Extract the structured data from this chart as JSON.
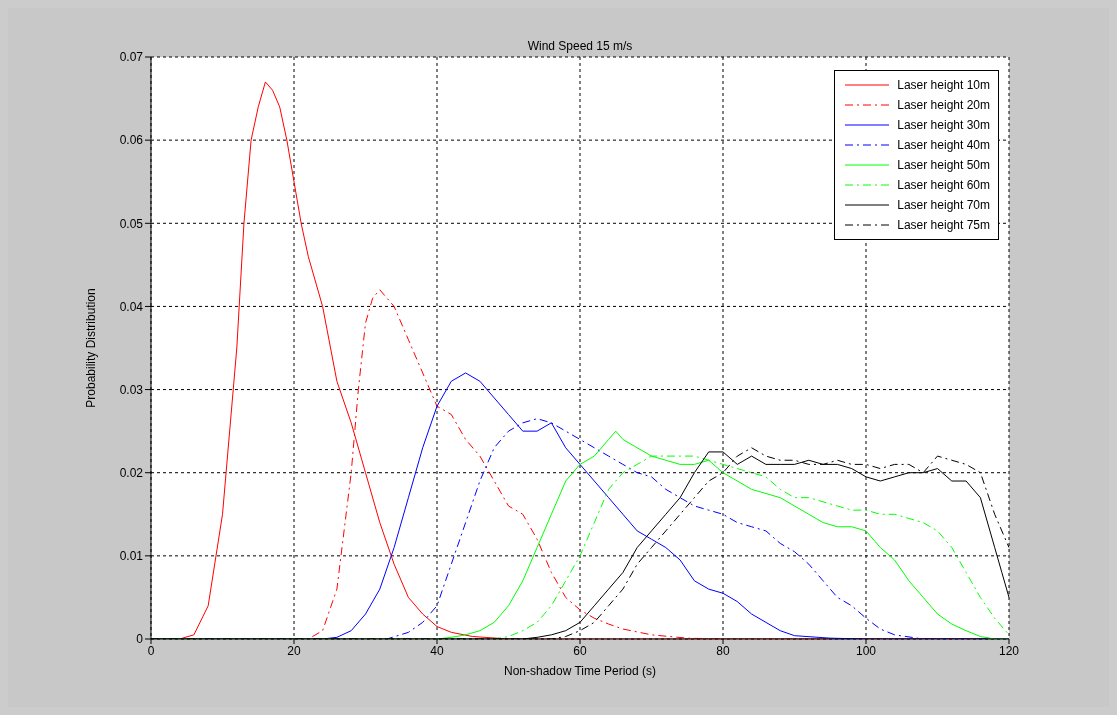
{
  "chart_data": {
    "type": "line",
    "title": "Wind Speed 15 m/s",
    "xlabel": "Non-shadow Time Period (s)",
    "ylabel": "Probability Distribution",
    "xlim": [
      0,
      120
    ],
    "xticks": [
      0,
      20,
      40,
      60,
      80,
      100,
      120
    ],
    "ylim": [
      0,
      0.07
    ],
    "yticks": [
      0,
      0.01,
      0.02,
      0.03,
      0.04,
      0.05,
      0.06,
      0.07
    ],
    "grid": true,
    "legend": "top right",
    "marker": "none",
    "series": [
      {
        "name": "Laser height 10m",
        "color": "#ff0000",
        "line_style": "solid",
        "x": [
          0,
          4,
          6,
          8,
          10,
          12,
          13,
          14,
          15,
          16,
          17,
          18,
          19,
          20,
          21,
          22,
          24,
          26,
          28,
          30,
          32,
          34,
          36,
          38,
          40,
          42,
          45,
          50,
          120
        ],
        "values": [
          0,
          0,
          0.0005,
          0.004,
          0.015,
          0.035,
          0.05,
          0.06,
          0.064,
          0.067,
          0.066,
          0.064,
          0.06,
          0.055,
          0.05,
          0.046,
          0.04,
          0.031,
          0.026,
          0.02,
          0.014,
          0.009,
          0.005,
          0.003,
          0.0015,
          0.0008,
          0.0003,
          0,
          0
        ]
      },
      {
        "name": "Laser height 20m",
        "color": "#ff0000",
        "line_style": "dashed",
        "x": [
          0,
          22,
          24,
          26,
          28,
          29,
          30,
          31,
          32,
          34,
          36,
          38,
          40,
          42,
          44,
          46,
          48,
          50,
          52,
          54,
          56,
          58,
          60,
          62,
          64,
          66,
          70,
          75,
          80,
          120
        ],
        "values": [
          0,
          0,
          0.001,
          0.006,
          0.02,
          0.03,
          0.038,
          0.041,
          0.042,
          0.04,
          0.036,
          0.032,
          0.028,
          0.027,
          0.024,
          0.022,
          0.019,
          0.016,
          0.015,
          0.012,
          0.008,
          0.005,
          0.0035,
          0.0025,
          0.0018,
          0.0012,
          0.0005,
          0.0001,
          0,
          0
        ]
      },
      {
        "name": "Laser height 30m",
        "color": "#0000ff",
        "line_style": "solid",
        "x": [
          0,
          24,
          26,
          28,
          30,
          32,
          34,
          36,
          38,
          40,
          42,
          44,
          46,
          48,
          50,
          52,
          54,
          56,
          58,
          60,
          62,
          64,
          66,
          68,
          70,
          72,
          74,
          76,
          78,
          80,
          82,
          84,
          86,
          88,
          90,
          95,
          100,
          120
        ],
        "values": [
          0,
          0,
          0.0002,
          0.001,
          0.003,
          0.006,
          0.011,
          0.017,
          0.023,
          0.028,
          0.031,
          0.032,
          0.031,
          0.029,
          0.027,
          0.025,
          0.025,
          0.026,
          0.023,
          0.021,
          0.019,
          0.017,
          0.015,
          0.013,
          0.012,
          0.011,
          0.0095,
          0.007,
          0.006,
          0.0055,
          0.0045,
          0.003,
          0.002,
          0.001,
          0.0004,
          0.0001,
          0,
          0
        ]
      },
      {
        "name": "Laser height 40m",
        "color": "#0000ff",
        "line_style": "dashed",
        "x": [
          0,
          33,
          36,
          38,
          40,
          42,
          44,
          46,
          48,
          50,
          52,
          54,
          56,
          58,
          60,
          62,
          64,
          66,
          68,
          70,
          72,
          74,
          76,
          78,
          80,
          82,
          84,
          86,
          88,
          90,
          92,
          94,
          96,
          98,
          100,
          102,
          104,
          108,
          120
        ],
        "values": [
          0,
          0,
          0.0008,
          0.002,
          0.004,
          0.009,
          0.014,
          0.019,
          0.023,
          0.025,
          0.026,
          0.0265,
          0.026,
          0.025,
          0.024,
          0.023,
          0.022,
          0.021,
          0.02,
          0.0195,
          0.018,
          0.017,
          0.016,
          0.0155,
          0.015,
          0.014,
          0.0135,
          0.013,
          0.0115,
          0.0105,
          0.009,
          0.007,
          0.005,
          0.004,
          0.0025,
          0.0012,
          0.0005,
          0,
          0
        ]
      },
      {
        "name": "Laser height 50m",
        "color": "#00ff00",
        "line_style": "solid",
        "x": [
          0,
          40,
          42,
          44,
          46,
          48,
          50,
          52,
          54,
          56,
          58,
          60,
          62,
          64,
          65,
          66,
          68,
          70,
          72,
          74,
          76,
          78,
          80,
          82,
          84,
          86,
          88,
          90,
          92,
          94,
          96,
          98,
          100,
          102,
          104,
          106,
          108,
          110,
          112,
          114,
          116,
          118,
          120
        ],
        "values": [
          0,
          0,
          0.0002,
          0.0005,
          0.001,
          0.002,
          0.004,
          0.007,
          0.011,
          0.015,
          0.019,
          0.021,
          0.022,
          0.024,
          0.025,
          0.024,
          0.023,
          0.022,
          0.0215,
          0.021,
          0.021,
          0.0215,
          0.02,
          0.019,
          0.018,
          0.0175,
          0.017,
          0.016,
          0.015,
          0.014,
          0.0135,
          0.0135,
          0.013,
          0.011,
          0.0095,
          0.007,
          0.005,
          0.003,
          0.0018,
          0.001,
          0.0003,
          0,
          0
        ]
      },
      {
        "name": "Laser height 60m",
        "color": "#00ff00",
        "line_style": "dashed",
        "x": [
          0,
          48,
          50,
          52,
          54,
          56,
          58,
          60,
          62,
          64,
          66,
          68,
          70,
          72,
          74,
          76,
          78,
          80,
          82,
          84,
          86,
          88,
          90,
          92,
          94,
          96,
          98,
          100,
          102,
          104,
          106,
          108,
          110,
          112,
          114,
          116,
          118,
          120
        ],
        "values": [
          0,
          0,
          0.0003,
          0.001,
          0.002,
          0.004,
          0.007,
          0.01,
          0.014,
          0.018,
          0.02,
          0.021,
          0.022,
          0.022,
          0.022,
          0.022,
          0.0215,
          0.021,
          0.0205,
          0.02,
          0.0195,
          0.018,
          0.017,
          0.017,
          0.0165,
          0.016,
          0.0155,
          0.0155,
          0.015,
          0.015,
          0.0145,
          0.014,
          0.013,
          0.011,
          0.008,
          0.005,
          0.0025,
          0.0005
        ]
      },
      {
        "name": "Laser height 70m",
        "color": "#000000",
        "line_style": "solid",
        "x": [
          0,
          52,
          54,
          56,
          58,
          60,
          62,
          64,
          66,
          68,
          70,
          72,
          74,
          76,
          78,
          80,
          82,
          84,
          86,
          88,
          90,
          92,
          94,
          96,
          98,
          100,
          102,
          104,
          106,
          108,
          110,
          112,
          114,
          116,
          118,
          119,
          120
        ],
        "values": [
          0,
          0,
          0.0002,
          0.0005,
          0.001,
          0.002,
          0.004,
          0.006,
          0.008,
          0.011,
          0.013,
          0.015,
          0.017,
          0.02,
          0.0225,
          0.0225,
          0.021,
          0.022,
          0.021,
          0.021,
          0.021,
          0.0215,
          0.021,
          0.021,
          0.0205,
          0.0195,
          0.019,
          0.0195,
          0.02,
          0.02,
          0.0205,
          0.019,
          0.019,
          0.017,
          0.011,
          0.008,
          0.005
        ]
      },
      {
        "name": "Laser height 75m",
        "color": "#000000",
        "line_style": "dashed",
        "x": [
          0,
          56,
          58,
          60,
          62,
          64,
          66,
          68,
          70,
          72,
          74,
          76,
          78,
          80,
          82,
          84,
          86,
          88,
          90,
          92,
          94,
          96,
          98,
          100,
          102,
          104,
          106,
          108,
          110,
          112,
          114,
          116,
          118,
          120
        ],
        "values": [
          0,
          0,
          0.0003,
          0.001,
          0.002,
          0.004,
          0.006,
          0.009,
          0.011,
          0.013,
          0.015,
          0.017,
          0.019,
          0.02,
          0.022,
          0.023,
          0.022,
          0.0215,
          0.0215,
          0.021,
          0.021,
          0.0215,
          0.021,
          0.021,
          0.0205,
          0.021,
          0.021,
          0.02,
          0.022,
          0.0215,
          0.021,
          0.02,
          0.015,
          0.011
        ]
      }
    ]
  }
}
